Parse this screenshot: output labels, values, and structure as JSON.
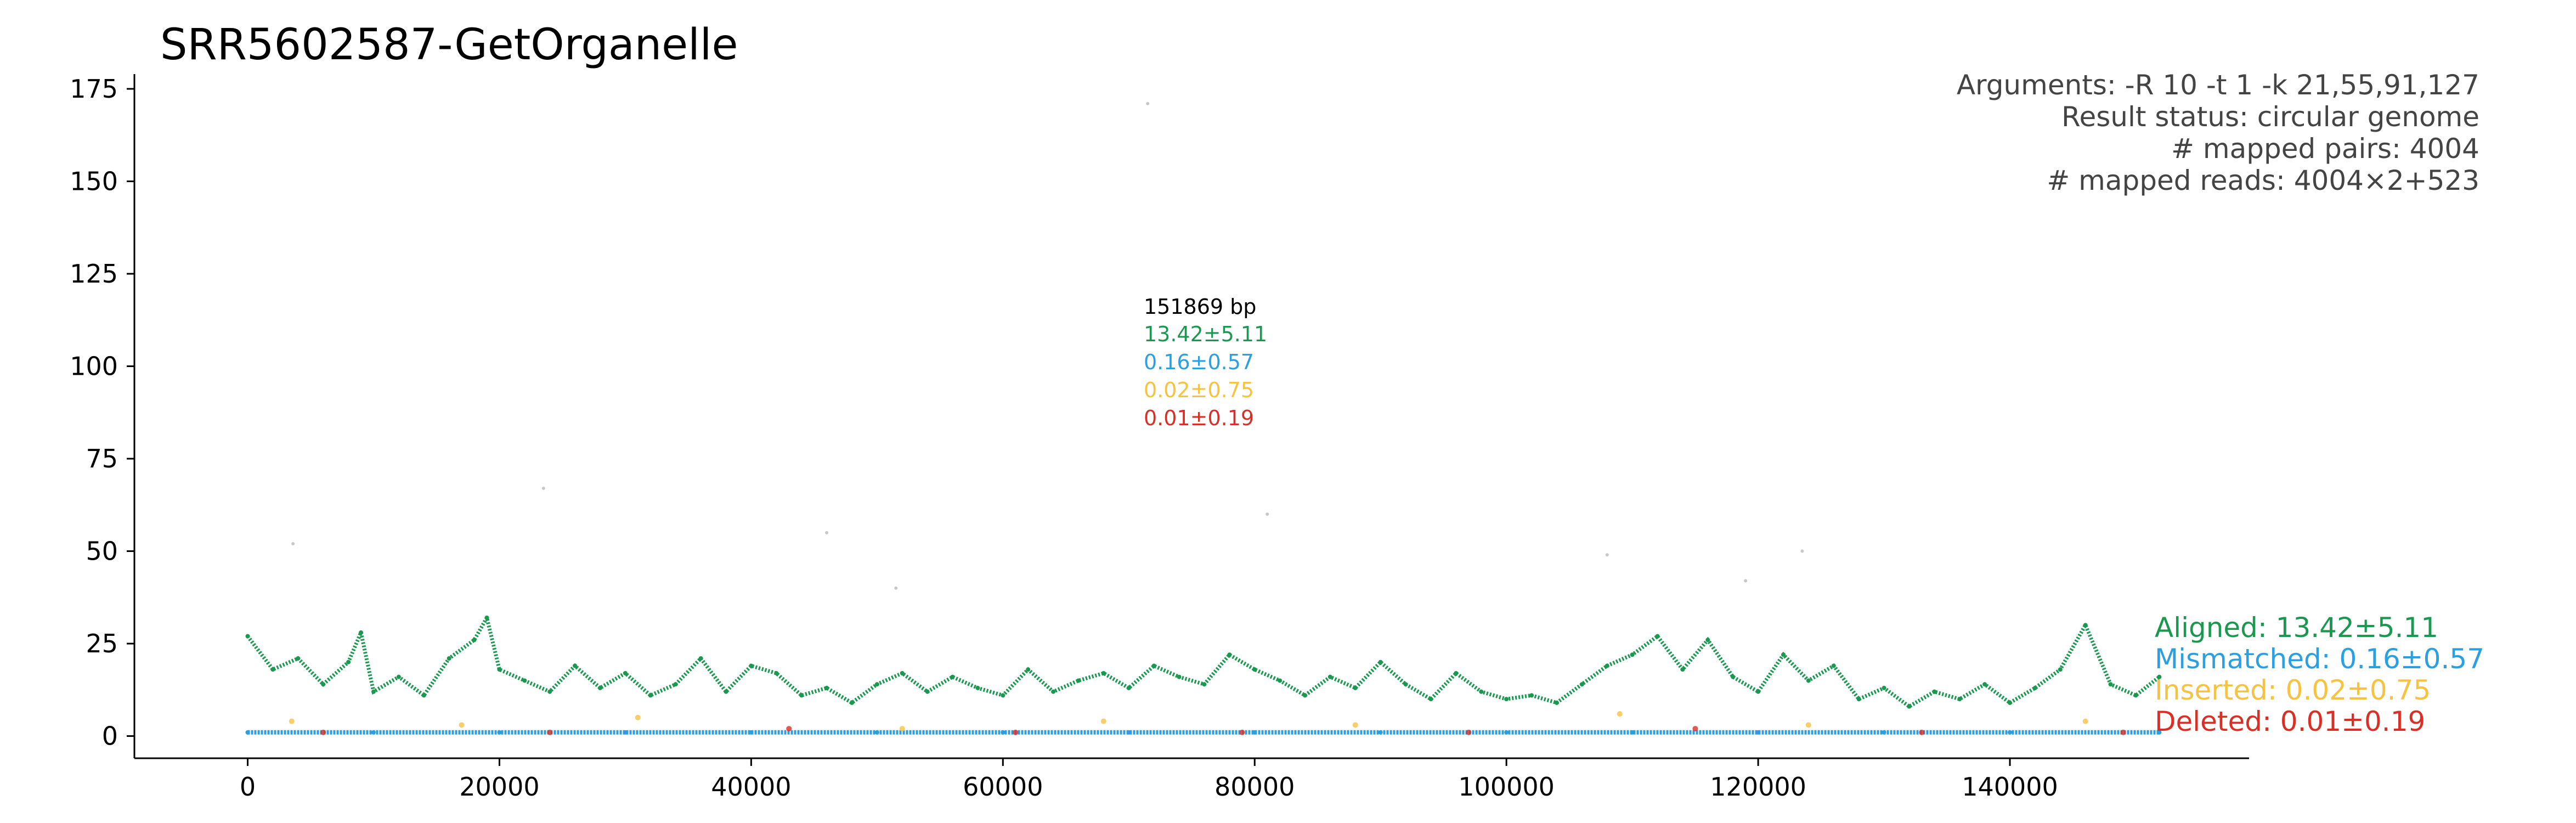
{
  "chart_data": {
    "type": "scatter",
    "title": "SRR5602587-GetOrganelle",
    "xlabel": "",
    "ylabel": "",
    "xlim": [
      -9000,
      159000
    ],
    "ylim": [
      -6,
      179
    ],
    "x_ticks": [
      {
        "value": 0,
        "label": "0"
      },
      {
        "value": 20000,
        "label": "20000"
      },
      {
        "value": 40000,
        "label": "40000"
      },
      {
        "value": 60000,
        "label": "60000"
      },
      {
        "value": 80000,
        "label": "80000"
      },
      {
        "value": 100000,
        "label": "100000"
      },
      {
        "value": 120000,
        "label": "120000"
      },
      {
        "value": 140000,
        "label": "140000"
      }
    ],
    "y_ticks": [
      {
        "value": 0,
        "label": "0"
      },
      {
        "value": 25,
        "label": "25"
      },
      {
        "value": 50,
        "label": "50"
      },
      {
        "value": 75,
        "label": "75"
      },
      {
        "value": 100,
        "label": "100"
      },
      {
        "value": 125,
        "label": "125"
      },
      {
        "value": 150,
        "label": "150"
      },
      {
        "value": 175,
        "label": "175"
      }
    ],
    "genome_length": 151869,
    "info_lines": [
      "Arguments: -R 10 -t 1 -k 21,55,91,127",
      "Result status: circular genome",
      "# mapped pairs: 4004",
      "# mapped reads: 4004×2+523"
    ],
    "stats_block": [
      {
        "text": "151869 bp",
        "color": "#000000"
      },
      {
        "text": "13.42±5.11",
        "color": "#1a9850"
      },
      {
        "text": "0.16±0.57",
        "color": "#2b9fe0"
      },
      {
        "text": "0.02±0.75",
        "color": "#f5c242"
      },
      {
        "text": "0.01±0.19",
        "color": "#d73027"
      }
    ],
    "series": [
      {
        "name": "Aligned: 13.42±5.11",
        "color": "#1a9850",
        "x": [
          0,
          2000,
          4000,
          6000,
          8000,
          9000,
          10000,
          12000,
          14000,
          16000,
          18000,
          19000,
          20000,
          22000,
          24000,
          26000,
          28000,
          30000,
          32000,
          34000,
          36000,
          38000,
          40000,
          42000,
          44000,
          46000,
          48000,
          50000,
          52000,
          54000,
          56000,
          58000,
          60000,
          62000,
          64000,
          66000,
          68000,
          70000,
          72000,
          74000,
          76000,
          78000,
          80000,
          82000,
          84000,
          86000,
          88000,
          90000,
          92000,
          94000,
          96000,
          98000,
          100000,
          102000,
          104000,
          106000,
          108000,
          110000,
          112000,
          114000,
          116000,
          118000,
          120000,
          122000,
          124000,
          126000,
          128000,
          130000,
          132000,
          134000,
          136000,
          138000,
          140000,
          142000,
          144000,
          146000,
          148000,
          150000,
          151869
        ],
        "values": [
          27,
          18,
          21,
          14,
          20,
          28,
          12,
          16,
          11,
          21,
          26,
          32,
          18,
          15,
          12,
          19,
          13,
          17,
          11,
          14,
          21,
          12,
          19,
          17,
          11,
          13,
          9,
          14,
          17,
          12,
          16,
          13,
          11,
          18,
          12,
          15,
          17,
          13,
          19,
          16,
          14,
          22,
          18,
          15,
          11,
          16,
          13,
          20,
          14,
          10,
          17,
          12,
          10,
          11,
          9,
          14,
          19,
          22,
          27,
          18,
          26,
          16,
          12,
          22,
          15,
          19,
          10,
          13,
          8,
          12,
          10,
          14,
          9,
          13,
          18,
          30,
          14,
          11,
          16
        ]
      },
      {
        "name": "Mismatched: 0.16±0.57",
        "color": "#2b9fe0",
        "x": [
          0,
          10000,
          20000,
          30000,
          40000,
          50000,
          60000,
          70000,
          80000,
          90000,
          100000,
          110000,
          120000,
          130000,
          140000,
          151869
        ],
        "values": [
          1,
          1,
          1,
          1,
          1,
          1,
          1,
          1,
          1,
          1,
          1,
          1,
          1,
          1,
          1,
          1
        ]
      },
      {
        "name": "Inserted: 0.02±0.75",
        "color": "#f5c242",
        "x": [
          3500,
          17000,
          31000,
          52000,
          68000,
          88000,
          109000,
          124000,
          146000
        ],
        "values": [
          4,
          3,
          5,
          2,
          4,
          3,
          6,
          3,
          4
        ]
      },
      {
        "name": "Deleted: 0.01±0.19",
        "color": "#d73027",
        "x": [
          6000,
          24000,
          43000,
          61000,
          79000,
          97000,
          115000,
          133000,
          149000
        ],
        "values": [
          1,
          1,
          2,
          1,
          1,
          1,
          2,
          1,
          1
        ]
      }
    ],
    "sparse_points": [
      {
        "x": 71500,
        "y": 171
      },
      {
        "x": 23500,
        "y": 67
      },
      {
        "x": 3600,
        "y": 52
      },
      {
        "x": 46000,
        "y": 55
      },
      {
        "x": 81000,
        "y": 60
      },
      {
        "x": 108000,
        "y": 49
      },
      {
        "x": 123500,
        "y": 50
      },
      {
        "x": 119000,
        "y": 42
      },
      {
        "x": 51500,
        "y": 40
      }
    ]
  }
}
